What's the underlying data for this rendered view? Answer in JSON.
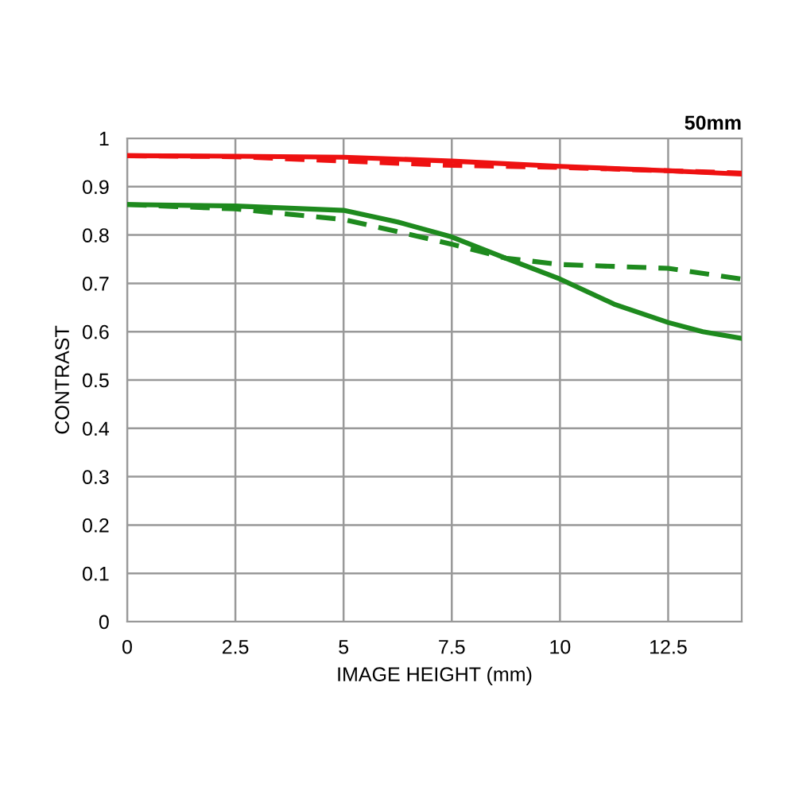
{
  "chart_data": {
    "type": "line",
    "title": "50mm",
    "xlabel": "IMAGE HEIGHT (mm)",
    "ylabel": "CONTRAST",
    "xlim": [
      0,
      14.2
    ],
    "ylim": [
      0,
      1
    ],
    "xticks": [
      0,
      2.5,
      5,
      7.5,
      10,
      12.5
    ],
    "yticks": [
      0,
      0.1,
      0.2,
      0.3,
      0.4,
      0.5,
      0.6,
      0.7,
      0.8,
      0.9,
      1
    ],
    "grid": true,
    "marker": "none",
    "series": [
      {
        "color": "#ee1111",
        "line_style": "solid",
        "x": [
          0,
          2.5,
          5,
          7.5,
          10,
          12.5,
          14.2
        ],
        "values": [
          0.964,
          0.963,
          0.961,
          0.953,
          0.942,
          0.933,
          0.926
        ]
      },
      {
        "color": "#ee1111",
        "line_style": "dashed",
        "x": [
          0,
          2.5,
          5,
          7.5,
          10,
          12.5,
          14.2
        ],
        "values": [
          0.964,
          0.962,
          0.953,
          0.944,
          0.94,
          0.933,
          0.928
        ]
      },
      {
        "color": "#1e8a1e",
        "line_style": "solid",
        "x": [
          0,
          2.5,
          5,
          6.25,
          7.5,
          8.75,
          10,
          11.25,
          12.5,
          13.3,
          14.2
        ],
        "values": [
          0.863,
          0.86,
          0.851,
          0.827,
          0.796,
          0.752,
          0.709,
          0.657,
          0.619,
          0.6,
          0.586
        ]
      },
      {
        "color": "#1e8a1e",
        "line_style": "dashed",
        "x": [
          0,
          2.5,
          5,
          6.25,
          7.5,
          8.75,
          10,
          12.5,
          14.2
        ],
        "values": [
          0.863,
          0.854,
          0.832,
          0.807,
          0.781,
          0.752,
          0.739,
          0.731,
          0.709
        ]
      }
    ]
  }
}
